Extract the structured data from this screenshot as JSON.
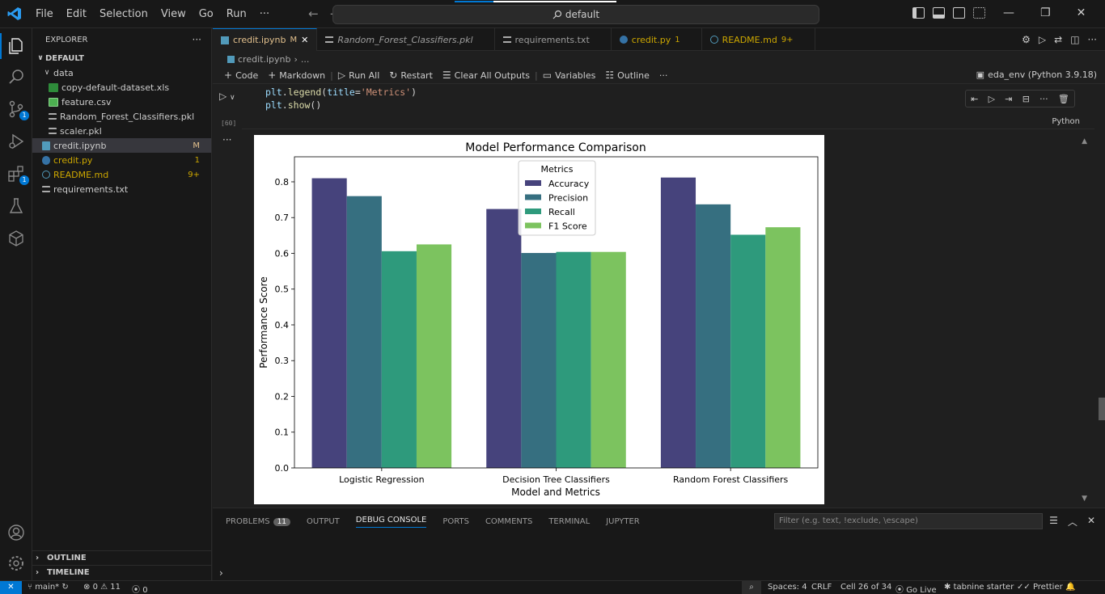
{
  "menu": [
    "File",
    "Edit",
    "Selection",
    "View",
    "Go",
    "Run",
    "···"
  ],
  "search": "default",
  "explorer": {
    "title": "EXPLORER",
    "root": "DEFAULT",
    "folder": "data",
    "items": [
      {
        "name": "copy-default-dataset.xls",
        "status": ""
      },
      {
        "name": "feature.csv",
        "status": ""
      },
      {
        "name": "Random_Forest_Classifiers.pkl",
        "status": ""
      },
      {
        "name": "scaler.pkl",
        "status": ""
      },
      {
        "name": "credit.ipynb",
        "status": "M"
      },
      {
        "name": "credit.py",
        "status": "1"
      },
      {
        "name": "README.md",
        "status": "9+"
      },
      {
        "name": "requirements.txt",
        "status": ""
      }
    ],
    "outline": "OUTLINE",
    "timeline": "TIMELINE"
  },
  "activity_badges": {
    "scm": "1",
    "extensions": "1"
  },
  "tabs": [
    {
      "label": "credit.ipynb",
      "mod": "M"
    },
    {
      "label": "Random_Forest_Classifiers.pkl",
      "mod": ""
    },
    {
      "label": "requirements.txt",
      "mod": ""
    },
    {
      "label": "credit.py",
      "mod": "1"
    },
    {
      "label": "README.md",
      "mod": "9+"
    }
  ],
  "breadcrumb": {
    "file": "credit.ipynb",
    "more": "..."
  },
  "toolbar": {
    "code": "Code",
    "markdown": "Markdown",
    "run_all": "Run All",
    "restart": "Restart",
    "clear": "Clear All Outputs",
    "variables": "Variables",
    "outline": "Outline",
    "more": "···",
    "kernel": "eda_env (Python 3.9.18)"
  },
  "cell": {
    "exec_count": "[60]",
    "language": "Python",
    "line1": {
      "obj": "plt",
      "fn": "legend",
      "arg": "title",
      "str": "'Metrics'"
    },
    "line2": {
      "obj": "plt",
      "fn": "show"
    }
  },
  "chart_data": {
    "type": "bar",
    "title": "Model Performance Comparison",
    "xlabel": "Model and Metrics",
    "ylabel": "Performance Score",
    "ylim": [
      0,
      0.87
    ],
    "yticks": [
      "0.0",
      "0.1",
      "0.2",
      "0.3",
      "0.4",
      "0.5",
      "0.6",
      "0.7",
      "0.8"
    ],
    "categories": [
      "Logistic Regression",
      "Decision Tree Classifiers",
      "Random Forest Classifiers"
    ],
    "legend_title": "Metrics",
    "legend_position": "top-center",
    "series": [
      {
        "name": "Accuracy",
        "color": "#46437c",
        "values": [
          0.81,
          0.724,
          0.812
        ]
      },
      {
        "name": "Precision",
        "color": "#366f80",
        "values": [
          0.76,
          0.601,
          0.737
        ]
      },
      {
        "name": "Recall",
        "color": "#2e9a7c",
        "values": [
          0.606,
          0.604,
          0.652
        ]
      },
      {
        "name": "F1 Score",
        "color": "#7cc35f",
        "values": [
          0.625,
          0.604,
          0.673
        ]
      }
    ]
  },
  "panel": {
    "tabs": [
      "PROBLEMS",
      "OUTPUT",
      "DEBUG CONSOLE",
      "PORTS",
      "COMMENTS",
      "TERMINAL",
      "JUPYTER"
    ],
    "problems_count": "11",
    "active": "DEBUG CONSOLE",
    "filter_placeholder": "Filter (e.g. text, !exclude, \\escape)"
  },
  "status": {
    "branch": "main*",
    "errors": "0",
    "warnings": "11",
    "ports": "0",
    "spaces": "Spaces: 4",
    "eol": "CRLF",
    "cell": "Cell 26 of 34",
    "golive": "Go Live",
    "tabnine": "tabnine starter",
    "prettier": "Prettier"
  }
}
